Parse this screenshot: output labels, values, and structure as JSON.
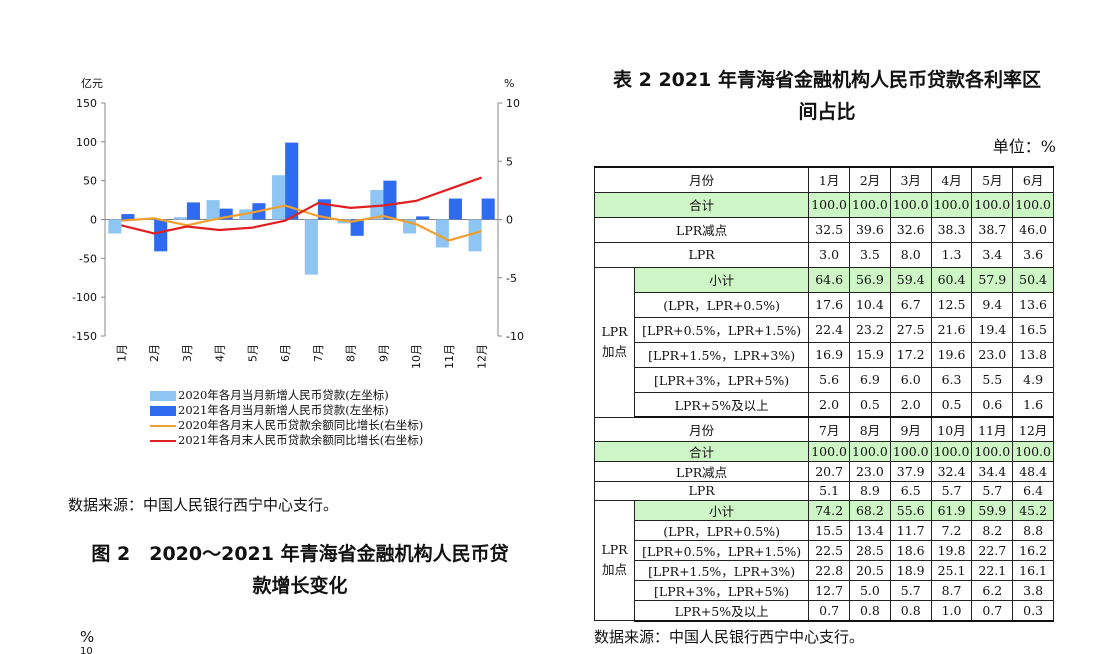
{
  "chart_data": {
    "type": "bar",
    "left_unit": "亿元",
    "right_unit": "%",
    "categories": [
      "1月",
      "2月",
      "3月",
      "4月",
      "5月",
      "6月",
      "7月",
      "8月",
      "9月",
      "10月",
      "11月",
      "12月"
    ],
    "left_axis": {
      "ylim": [
        -150,
        150
      ],
      "ticks": [
        150,
        100,
        50,
        0,
        -50,
        -100,
        -150
      ]
    },
    "right_axis": {
      "ylim": [
        -10,
        10
      ],
      "ticks": [
        10,
        5,
        0,
        -5,
        -10
      ]
    },
    "series": [
      {
        "name": "2020年各月当月新增人民币贷款(左坐标)",
        "kind": "bar",
        "axis": "left",
        "color": "#8fc5f3",
        "values": [
          -18,
          0,
          3,
          25,
          13,
          57,
          -71,
          -5,
          38,
          -18,
          -36,
          -41
        ]
      },
      {
        "name": "2021年各月当月新增人民币贷款(左坐标)",
        "kind": "bar",
        "axis": "left",
        "color": "#2f6bf0",
        "values": [
          7,
          -41,
          22,
          14,
          21,
          99,
          26,
          -21,
          50,
          4,
          27,
          27
        ]
      },
      {
        "name": "2020年各月末人民币贷款余额同比增长(右坐标)",
        "kind": "line",
        "axis": "right",
        "color": "#f0a030",
        "values": [
          -0.1,
          0.1,
          -0.5,
          0.1,
          0.6,
          1.2,
          0.3,
          -0.2,
          0.3,
          -0.4,
          -1.8,
          -1.0
        ]
      },
      {
        "name": "2021年各月末人民币贷款余额同比增长(右坐标)",
        "kind": "line",
        "axis": "right",
        "color": "#e02020",
        "values": [
          -0.5,
          -1.2,
          -0.6,
          -0.9,
          -0.7,
          -0.1,
          1.4,
          1.0,
          1.2,
          1.6,
          2.6,
          3.6
        ]
      }
    ]
  },
  "chart_source": "数据来源：中国人民银行西宁中心支行。",
  "figure_caption_line1": "图 2　2020～2021 年青海省金融机构人民币贷",
  "figure_caption_line2": "款增长变化",
  "pct_stub": "%",
  "pct_stub2": "10",
  "table": {
    "title_line1": "表 2 2021 年青海省金融机构人民币贷款各利率区",
    "title_line2": "间占比",
    "unit": "单位：%",
    "month_label": "月份",
    "lpr_group": [
      "LPR",
      "加点"
    ],
    "row_labels": {
      "total": "合计",
      "lpr_minus": "LPR减点",
      "lpr": "LPR",
      "subtotal": "小计",
      "r1": "(LPR，LPR+0.5%)",
      "r2": "[LPR+0.5%，LPR+1.5%)",
      "r3": "[LPR+1.5%，LPR+3%)",
      "r4": "[LPR+3%，LPR+5%)",
      "r5": "LPR+5%及以上"
    },
    "h1": {
      "months": [
        "1月",
        "2月",
        "3月",
        "4月",
        "5月",
        "6月"
      ],
      "total": [
        "100.0",
        "100.0",
        "100.0",
        "100.0",
        "100.0",
        "100.0"
      ],
      "lpr_minus": [
        "32.5",
        "39.6",
        "32.6",
        "38.3",
        "38.7",
        "46.0"
      ],
      "lpr": [
        "3.0",
        "3.5",
        "8.0",
        "1.3",
        "3.4",
        "3.6"
      ],
      "subtotal": [
        "64.6",
        "56.9",
        "59.4",
        "60.4",
        "57.9",
        "50.4"
      ],
      "r1": [
        "17.6",
        "10.4",
        "6.7",
        "12.5",
        "9.4",
        "13.6"
      ],
      "r2": [
        "22.4",
        "23.2",
        "27.5",
        "21.6",
        "19.4",
        "16.5"
      ],
      "r3": [
        "16.9",
        "15.9",
        "17.2",
        "19.6",
        "23.0",
        "13.8"
      ],
      "r4": [
        "5.6",
        "6.9",
        "6.0",
        "6.3",
        "5.5",
        "4.9"
      ],
      "r5": [
        "2.0",
        "0.5",
        "2.0",
        "0.5",
        "0.6",
        "1.6"
      ]
    },
    "h2": {
      "months": [
        "7月",
        "8月",
        "9月",
        "10月",
        "11月",
        "12月"
      ],
      "total": [
        "100.0",
        "100.0",
        "100.0",
        "100.0",
        "100.0",
        "100.0"
      ],
      "lpr_minus": [
        "20.7",
        "23.0",
        "37.9",
        "32.4",
        "34.4",
        "48.4"
      ],
      "lpr": [
        "5.1",
        "8.9",
        "6.5",
        "5.7",
        "5.7",
        "6.4"
      ],
      "subtotal": [
        "74.2",
        "68.2",
        "55.6",
        "61.9",
        "59.9",
        "45.2"
      ],
      "r1": [
        "15.5",
        "13.4",
        "11.7",
        "7.2",
        "8.2",
        "8.8"
      ],
      "r2": [
        "22.5",
        "28.5",
        "18.6",
        "19.8",
        "22.7",
        "16.2"
      ],
      "r3": [
        "22.8",
        "20.5",
        "18.9",
        "25.1",
        "22.1",
        "16.1"
      ],
      "r4": [
        "12.7",
        "5.0",
        "5.7",
        "8.7",
        "6.2",
        "3.8"
      ],
      "r5": [
        "0.7",
        "0.8",
        "0.8",
        "1.0",
        "0.7",
        "0.3"
      ]
    },
    "source": "数据来源：中国人民银行西宁中心支行。",
    "highlight_color": "#cdf5c6"
  }
}
